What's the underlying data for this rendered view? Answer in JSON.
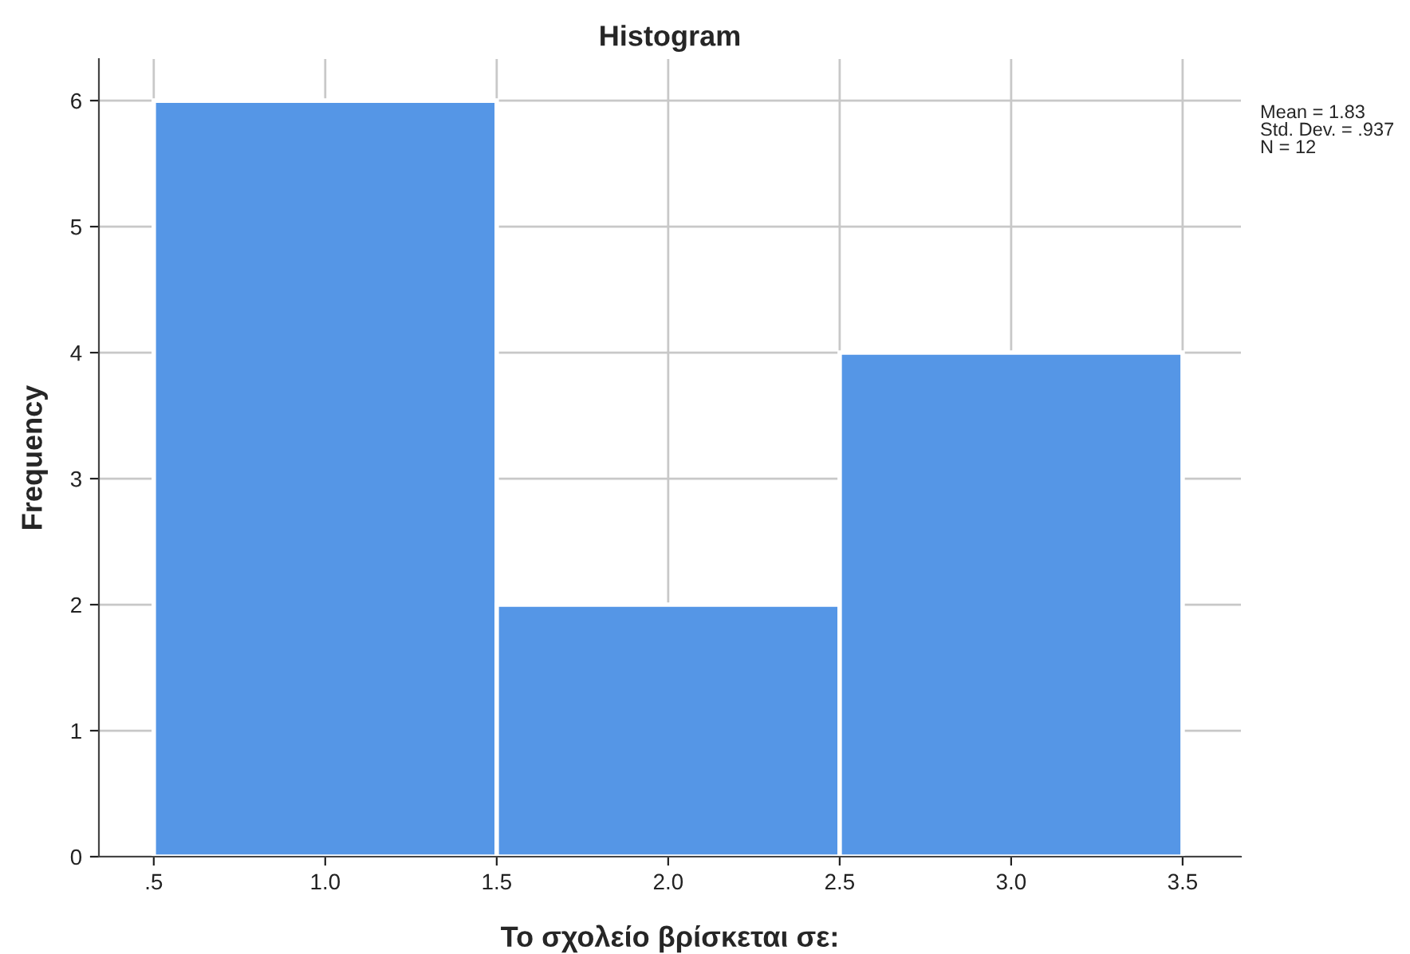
{
  "chart_data": {
    "type": "histogram",
    "title": "Histogram",
    "xlabel": "Το σχολείο βρίσκεται σε:",
    "ylabel": "Frequency",
    "bins": [
      0.5,
      1.5,
      2.5,
      3.5
    ],
    "values": [
      6,
      2,
      4
    ],
    "color": "#5596e6",
    "xlim": [
      0.34,
      3.67
    ],
    "ylim": [
      0,
      6.33
    ],
    "xticks": [
      {
        "value": 0.5,
        "label": ".5"
      },
      {
        "value": 1.0,
        "label": "1.0"
      },
      {
        "value": 1.5,
        "label": "1.5"
      },
      {
        "value": 2.0,
        "label": "2.0"
      },
      {
        "value": 2.5,
        "label": "2.5"
      },
      {
        "value": 3.0,
        "label": "3.0"
      },
      {
        "value": 3.5,
        "label": "3.5"
      }
    ],
    "yticks": [
      0,
      1,
      2,
      3,
      4,
      5,
      6
    ],
    "grid": true,
    "annotations": [
      "Mean = 1.83",
      "Std. Dev. = .937",
      "N = 12"
    ]
  }
}
